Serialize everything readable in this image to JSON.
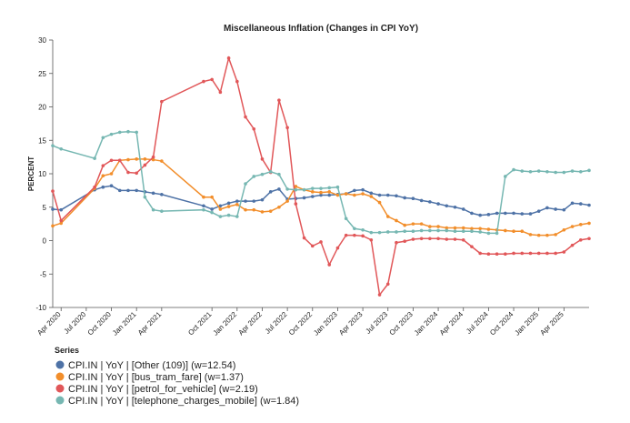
{
  "chart_data": {
    "type": "line",
    "title": "Miscellaneous Inflation (Changes in CPI YoY)",
    "y_label": "PERCENT",
    "legend_title": "Series",
    "legend": "bottom-left",
    "grid": false,
    "x": [
      "2020-03",
      "2020-04",
      "2020-08",
      "2020-09",
      "2020-10",
      "2020-11",
      "2020-12",
      "2021-01",
      "2021-02",
      "2021-03",
      "2021-04",
      "2021-09",
      "2021-10",
      "2021-11",
      "2021-12",
      "2022-01",
      "2022-02",
      "2022-03",
      "2022-04",
      "2022-05",
      "2022-06",
      "2022-07",
      "2022-08",
      "2022-09",
      "2022-10",
      "2022-11",
      "2022-12",
      "2023-01",
      "2023-02",
      "2023-03",
      "2023-04",
      "2023-05",
      "2023-06",
      "2023-07",
      "2023-08",
      "2023-09",
      "2023-10",
      "2023-11",
      "2023-12",
      "2024-01",
      "2024-02",
      "2024-03",
      "2024-04",
      "2024-05",
      "2024-06",
      "2024-07",
      "2024-08",
      "2024-09",
      "2024-10",
      "2024-11",
      "2024-12",
      "2025-01",
      "2025-02",
      "2025-03",
      "2025-04",
      "2025-05",
      "2025-06",
      "2025-07"
    ],
    "xlim": [
      "2020-03",
      "2025-07"
    ],
    "xticks": [
      {
        "value": "2020-04",
        "label": "Apr 2020"
      },
      {
        "value": "2020-07",
        "label": "Jul 2020"
      },
      {
        "value": "2020-10",
        "label": "Oct 2020"
      },
      {
        "value": "2021-01",
        "label": "Jan 2021"
      },
      {
        "value": "2021-04",
        "label": "Apr 2021"
      },
      {
        "value": "2021-10",
        "label": "Oct 2021"
      },
      {
        "value": "2022-01",
        "label": "Jan 2022"
      },
      {
        "value": "2022-04",
        "label": "Apr 2022"
      },
      {
        "value": "2022-07",
        "label": "Jul 2022"
      },
      {
        "value": "2022-10",
        "label": "Oct 2022"
      },
      {
        "value": "2023-01",
        "label": "Jan 2023"
      },
      {
        "value": "2023-04",
        "label": "Apr 2023"
      },
      {
        "value": "2023-07",
        "label": "Jul 2023"
      },
      {
        "value": "2023-10",
        "label": "Oct 2023"
      },
      {
        "value": "2024-01",
        "label": "Jan 2024"
      },
      {
        "value": "2024-04",
        "label": "Apr 2024"
      },
      {
        "value": "2024-07",
        "label": "Jul 2024"
      },
      {
        "value": "2024-10",
        "label": "Oct 2024"
      },
      {
        "value": "2025-01",
        "label": "Jan 2025"
      },
      {
        "value": "2025-04",
        "label": "Apr 2025"
      }
    ],
    "ylim": [
      -10,
      30
    ],
    "yticks": [
      -10,
      -5,
      0,
      5,
      10,
      15,
      20,
      25,
      30
    ],
    "series": [
      {
        "name": "CPI.IN | YoY | [Other (109)] (w=12.54)",
        "color": "#4e72a6",
        "values": [
          4.7,
          4.6,
          7.6,
          8.0,
          8.2,
          7.5,
          7.5,
          7.5,
          7.3,
          7.1,
          6.9,
          5.2,
          4.7,
          5.2,
          5.6,
          5.9,
          5.9,
          5.9,
          6.1,
          7.3,
          7.7,
          6.2,
          6.3,
          6.4,
          6.6,
          6.8,
          6.8,
          6.9,
          7.0,
          7.5,
          7.6,
          7.1,
          6.8,
          6.8,
          6.7,
          6.4,
          6.3,
          6.0,
          5.8,
          5.5,
          5.2,
          5.0,
          4.7,
          4.1,
          3.8,
          3.9,
          4.1,
          4.1,
          4.1,
          4.0,
          4.0,
          4.4,
          4.9,
          4.7,
          4.6,
          5.6,
          5.5,
          5.3
        ]
      },
      {
        "name": "CPI.IN | YoY | [bus_tram_fare] (w=1.37)",
        "color": "#f28e2b",
        "values": [
          2.2,
          2.6,
          7.8,
          9.7,
          10.0,
          12.0,
          12.1,
          12.2,
          12.2,
          12.1,
          11.9,
          6.5,
          6.5,
          4.7,
          5.1,
          5.4,
          4.6,
          4.6,
          4.3,
          4.4,
          5.0,
          5.9,
          8.1,
          7.6,
          7.3,
          7.2,
          7.3,
          6.8,
          7.0,
          6.8,
          7.0,
          6.6,
          5.7,
          3.6,
          3.0,
          2.3,
          2.5,
          2.5,
          2.1,
          2.1,
          1.9,
          1.9,
          1.9,
          1.8,
          1.8,
          1.7,
          1.6,
          1.5,
          1.4,
          1.4,
          0.9,
          0.8,
          0.8,
          0.9,
          1.6,
          2.1,
          2.4,
          2.6
        ]
      },
      {
        "name": "CPI.IN | YoY | [petrol_for_vehicle] (w=2.19)",
        "color": "#e15759",
        "values": [
          7.4,
          3.0,
          8.0,
          11.2,
          12.0,
          12.0,
          10.2,
          10.1,
          11.3,
          12.5,
          20.8,
          23.8,
          24.1,
          22.2,
          27.3,
          23.8,
          18.5,
          16.7,
          12.2,
          10.2,
          21.0,
          16.9,
          5.5,
          0.4,
          -0.8,
          -0.2,
          -3.6,
          -1.1,
          0.8,
          0.8,
          0.7,
          0.1,
          -8.1,
          -6.5,
          -0.3,
          -0.1,
          0.2,
          0.3,
          0.3,
          0.3,
          0.2,
          0.2,
          0.1,
          -0.9,
          -1.9,
          -2.0,
          -2.0,
          -2.0,
          -1.9,
          -1.9,
          -1.9,
          -1.9,
          -1.9,
          -1.9,
          -1.7,
          -0.7,
          0.1,
          0.3
        ]
      },
      {
        "name": "CPI.IN | YoY | [telephone_charges_mobile] (w=1.84)",
        "color": "#76b7b2",
        "values": [
          14.2,
          13.7,
          12.3,
          15.4,
          15.9,
          16.2,
          16.3,
          16.2,
          6.5,
          4.6,
          4.4,
          4.6,
          4.2,
          3.6,
          3.8,
          3.6,
          8.5,
          9.6,
          9.9,
          10.3,
          9.9,
          7.7,
          7.6,
          7.6,
          7.8,
          7.8,
          7.9,
          8.0,
          3.3,
          1.8,
          1.6,
          1.2,
          1.2,
          1.3,
          1.3,
          1.4,
          1.4,
          1.5,
          1.5,
          1.5,
          1.5,
          1.4,
          1.4,
          1.4,
          1.3,
          1.1,
          1.1,
          9.6,
          10.6,
          10.4,
          10.3,
          10.4,
          10.3,
          10.2,
          10.2,
          10.4,
          10.3,
          10.5
        ]
      }
    ]
  }
}
